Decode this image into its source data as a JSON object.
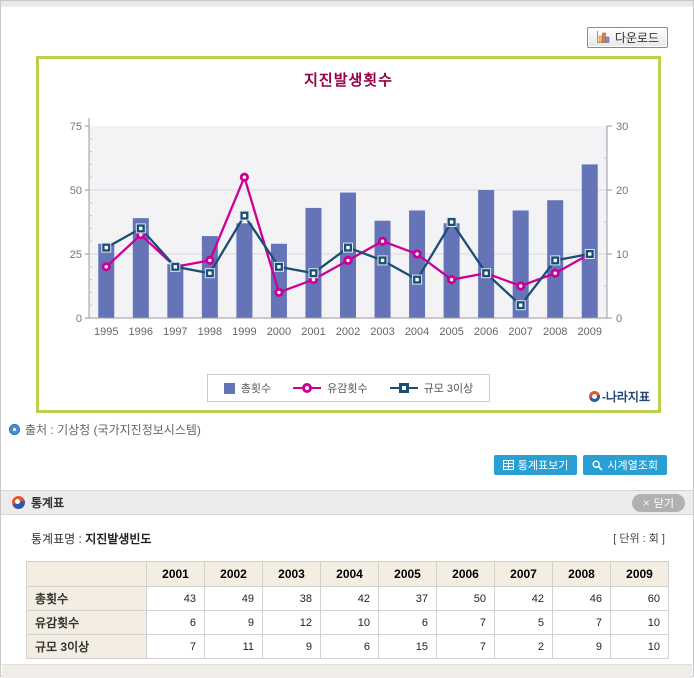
{
  "ui": {
    "download_button": "다운로드",
    "source": "출처 : 기상청 (국가지진정보시스템)",
    "actions": {
      "stats_table_button": "통계표보기",
      "time_series_button": "시계열조회"
    },
    "panel": {
      "title": "통계표",
      "close_button": "닫기",
      "close_x": "×"
    },
    "meta": {
      "table_name_label": "통계표명 :",
      "table_name": "지진발생빈도",
      "unit": "[ 단위 : 회 ]"
    },
    "logo_text": "-나라지표",
    "colors": {
      "chart_border": "#bdd04e",
      "title": "#990044",
      "button_blue": "#2a9fd4",
      "close_gray": "#b1b1b1"
    }
  },
  "chart_data": {
    "type": "bar+line",
    "title": "지진발생횟수",
    "categories": [
      "1995",
      "1996",
      "1997",
      "1998",
      "1999",
      "2000",
      "2001",
      "2002",
      "2003",
      "2004",
      "2005",
      "2006",
      "2007",
      "2008",
      "2009"
    ],
    "series": [
      {
        "name": "총횟수",
        "type": "bar",
        "axis": "left",
        "color": "#6474b6",
        "values": [
          29,
          39,
          21,
          32,
          37,
          29,
          43,
          49,
          38,
          42,
          37,
          50,
          42,
          46,
          60
        ]
      },
      {
        "name": "유감횟수",
        "type": "line",
        "marker": "circle",
        "axis": "right",
        "color": "#cc0099",
        "values": [
          8,
          13,
          8,
          9,
          22,
          4,
          6,
          9,
          12,
          10,
          6,
          7,
          5,
          7,
          10
        ]
      },
      {
        "name": "규모 3이상",
        "type": "line",
        "marker": "square",
        "axis": "right",
        "color": "#1b4e74",
        "values": [
          11,
          14,
          8,
          7,
          16,
          8,
          7,
          11,
          9,
          6,
          15,
          7,
          2,
          9,
          10
        ]
      }
    ],
    "left_axis": {
      "max": 75,
      "ticks": [
        0,
        25,
        50,
        75
      ]
    },
    "right_axis": {
      "max": 30,
      "ticks": [
        0,
        10,
        20,
        30
      ]
    },
    "plot_bg": "#f3f3f6",
    "grid": true,
    "legend_position": "bottom"
  },
  "stats_panel": {
    "table": {
      "columns": [
        "2001",
        "2002",
        "2003",
        "2004",
        "2005",
        "2006",
        "2007",
        "2008",
        "2009"
      ],
      "rows": [
        {
          "label": "총횟수",
          "values": [
            43,
            49,
            38,
            42,
            37,
            50,
            42,
            46,
            60
          ]
        },
        {
          "label": "유감횟수",
          "values": [
            6,
            9,
            12,
            10,
            6,
            7,
            5,
            7,
            10
          ]
        },
        {
          "label": "규모 3이상",
          "values": [
            7,
            11,
            9,
            6,
            15,
            7,
            2,
            9,
            10
          ]
        }
      ]
    }
  }
}
